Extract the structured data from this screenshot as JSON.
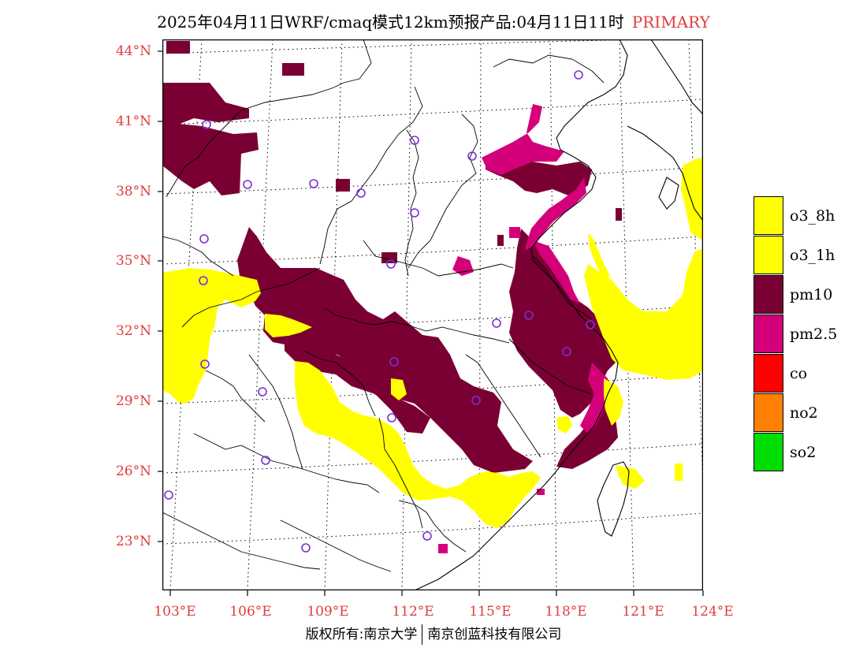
{
  "title": {
    "text": "2025年04月11日WRF/cmaq模式12km预报产品:04月11日11时",
    "tag": "PRIMARY",
    "tag_color": "#e03c3c"
  },
  "lat_labels": [
    "44°N",
    "41°N",
    "38°N",
    "35°N",
    "32°N",
    "29°N",
    "26°N",
    "23°N"
  ],
  "lon_labels": [
    "103°E",
    "106°E",
    "109°E",
    "112°E",
    "115°E",
    "118°E",
    "121°E",
    "124°E"
  ],
  "legend": [
    {
      "label": "o3_8h",
      "color": "#ffff00"
    },
    {
      "label": "o3_1h",
      "color": "#ffff00"
    },
    {
      "label": "pm10",
      "color": "#7a0033"
    },
    {
      "label": "pm2.5",
      "color": "#d4007a"
    },
    {
      "label": "co",
      "color": "#ff0000"
    },
    {
      "label": "no2",
      "color": "#ff8000"
    },
    {
      "label": "so2",
      "color": "#00dd00"
    }
  ],
  "footer": {
    "left": "版权所有:南京大学",
    "right": "南京创蓝科技有限公司"
  }
}
